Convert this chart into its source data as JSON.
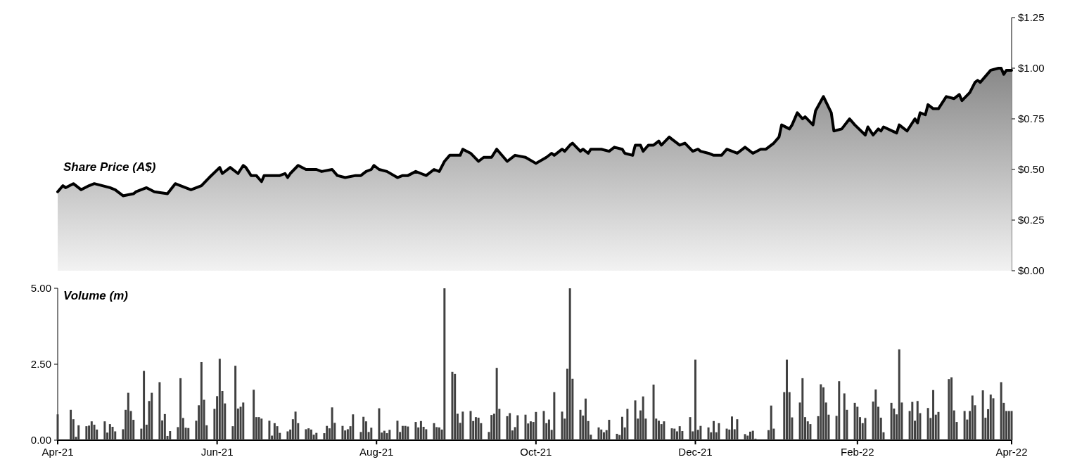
{
  "chart_data": [
    {
      "type": "area",
      "ylabel": "Share Price (A$)",
      "color": "#000000",
      "tick_labels": "y",
      "xlim": [
        "2021-04-01",
        "2022-04-01"
      ],
      "ylim": [
        0,
        1.25
      ],
      "yticks": [
        {
          "value": 0,
          "label": "$0.00"
        },
        {
          "value": 0.25,
          "label": "$0.25"
        },
        {
          "value": 0.5,
          "label": "$0.50"
        },
        {
          "value": 0.75,
          "label": "$0.75"
        },
        {
          "value": 1,
          "label": "$1.00"
        },
        {
          "value": 1.25,
          "label": "$1.25"
        }
      ],
      "x": [
        "2021-04-01",
        "2021-04-03",
        "2021-04-04",
        "2021-04-07",
        "2021-04-10",
        "2021-04-13",
        "2021-04-15",
        "2021-04-21",
        "2021-04-23",
        "2021-04-26",
        "2021-04-30",
        "2021-05-01",
        "2021-05-05",
        "2021-05-08",
        "2021-05-13",
        "2021-05-16",
        "2021-05-18",
        "2021-05-22",
        "2021-05-26",
        "2021-05-29",
        "2021-06-02",
        "2021-06-03",
        "2021-06-06",
        "2021-06-09",
        "2021-06-11",
        "2021-06-12",
        "2021-06-14",
        "2021-06-16",
        "2021-06-18",
        "2021-06-19",
        "2021-06-25",
        "2021-06-27",
        "2021-06-28",
        "2021-06-29",
        "2021-07-02",
        "2021-07-05",
        "2021-07-09",
        "2021-07-11",
        "2021-07-15",
        "2021-07-17",
        "2021-07-20",
        "2021-07-24",
        "2021-07-26",
        "2021-07-28",
        "2021-07-30",
        "2021-07-31",
        "2021-08-02",
        "2021-08-05",
        "2021-08-09",
        "2021-08-11",
        "2021-08-13",
        "2021-08-16",
        "2021-08-18",
        "2021-08-20",
        "2021-08-23",
        "2021-08-25",
        "2021-08-27",
        "2021-08-29",
        "2021-09-02",
        "2021-09-03",
        "2021-09-06",
        "2021-09-09",
        "2021-09-11",
        "2021-09-14",
        "2021-09-16",
        "2021-09-20",
        "2021-09-23",
        "2021-09-27",
        "2021-10-01",
        "2021-10-05",
        "2021-10-07",
        "2021-10-08",
        "2021-10-11",
        "2021-10-12",
        "2021-10-14",
        "2021-10-15",
        "2021-10-18",
        "2021-10-19",
        "2021-10-21",
        "2021-10-22",
        "2021-10-26",
        "2021-10-29",
        "2021-10-31",
        "2021-11-03",
        "2021-11-04",
        "2021-11-07",
        "2021-11-08",
        "2021-11-10",
        "2021-11-11",
        "2021-11-13",
        "2021-11-15",
        "2021-11-17",
        "2021-11-18",
        "2021-11-21",
        "2021-11-22",
        "2021-11-25",
        "2021-11-27",
        "2021-11-30",
        "2021-12-02",
        "2021-12-03",
        "2021-12-06",
        "2021-12-08",
        "2021-12-11",
        "2021-12-13",
        "2021-12-17",
        "2021-12-20",
        "2021-12-23",
        "2021-12-26",
        "2021-12-28",
        "2021-12-31",
        "2022-01-02",
        "2022-01-03",
        "2022-01-06",
        "2022-01-07",
        "2022-01-09",
        "2022-01-11",
        "2022-01-12",
        "2022-01-15",
        "2022-01-16",
        "2022-01-19",
        "2022-01-22",
        "2022-01-23",
        "2022-01-26",
        "2022-01-29",
        "2022-01-31",
        "2022-02-04",
        "2022-02-05",
        "2022-02-07",
        "2022-02-09",
        "2022-02-10",
        "2022-02-11",
        "2022-02-16",
        "2022-02-17",
        "2022-02-20",
        "2022-02-23",
        "2022-02-24",
        "2022-02-25",
        "2022-02-27",
        "2022-02-28",
        "2022-03-02",
        "2022-03-04",
        "2022-03-07",
        "2022-03-10",
        "2022-03-12",
        "2022-03-13",
        "2022-03-16",
        "2022-03-18",
        "2022-03-19",
        "2022-03-20",
        "2022-03-24",
        "2022-03-27",
        "2022-03-28",
        "2022-03-29",
        "2022-03-30",
        "2022-04-01"
      ],
      "values": [
        0.39,
        0.42,
        0.41,
        0.43,
        0.4,
        0.42,
        0.43,
        0.41,
        0.4,
        0.37,
        0.38,
        0.39,
        0.41,
        0.39,
        0.38,
        0.43,
        0.42,
        0.4,
        0.42,
        0.46,
        0.51,
        0.48,
        0.51,
        0.48,
        0.52,
        0.51,
        0.47,
        0.47,
        0.44,
        0.47,
        0.47,
        0.48,
        0.46,
        0.48,
        0.52,
        0.5,
        0.5,
        0.49,
        0.5,
        0.47,
        0.46,
        0.47,
        0.47,
        0.49,
        0.5,
        0.52,
        0.5,
        0.49,
        0.46,
        0.47,
        0.47,
        0.49,
        0.48,
        0.47,
        0.5,
        0.49,
        0.54,
        0.57,
        0.57,
        0.6,
        0.58,
        0.54,
        0.56,
        0.56,
        0.6,
        0.54,
        0.57,
        0.56,
        0.53,
        0.56,
        0.58,
        0.57,
        0.6,
        0.59,
        0.62,
        0.63,
        0.59,
        0.6,
        0.58,
        0.6,
        0.6,
        0.59,
        0.61,
        0.6,
        0.58,
        0.57,
        0.62,
        0.62,
        0.59,
        0.62,
        0.62,
        0.64,
        0.62,
        0.66,
        0.65,
        0.62,
        0.63,
        0.59,
        0.6,
        0.59,
        0.58,
        0.57,
        0.57,
        0.6,
        0.58,
        0.61,
        0.58,
        0.6,
        0.6,
        0.63,
        0.66,
        0.72,
        0.7,
        0.72,
        0.78,
        0.75,
        0.76,
        0.72,
        0.79,
        0.86,
        0.78,
        0.69,
        0.7,
        0.75,
        0.72,
        0.67,
        0.71,
        0.67,
        0.7,
        0.69,
        0.71,
        0.68,
        0.72,
        0.69,
        0.75,
        0.73,
        0.78,
        0.77,
        0.82,
        0.8,
        0.8,
        0.86,
        0.85,
        0.87,
        0.84,
        0.88,
        0.93,
        0.94,
        0.93,
        0.99,
        1.0,
        1.0,
        0.97,
        0.99,
        0.99
      ]
    },
    {
      "type": "bar",
      "ylabel": "Volume (m)",
      "color": "#404040",
      "xlim": [
        "2021-04-01",
        "2022-04-01"
      ],
      "ylim": [
        0,
        5
      ],
      "yticks": [
        {
          "value": 0,
          "label": "0.00"
        },
        {
          "value": 2.5,
          "label": "2.50"
        },
        {
          "value": 5,
          "label": "5.00"
        }
      ],
      "xticks": [
        {
          "value": "2021-04-01",
          "label": "Apr-21"
        },
        {
          "value": "2021-06-01",
          "label": "Jun-21"
        },
        {
          "value": "2021-08-01",
          "label": "Aug-21"
        },
        {
          "value": "2021-10-01",
          "label": "Oct-21"
        },
        {
          "value": "2021-12-01",
          "label": "Dec-21"
        },
        {
          "value": "2022-02-01",
          "label": "Feb-22"
        },
        {
          "value": "2022-04-01",
          "label": "Apr-22"
        }
      ],
      "x": [
        "2021-04-01",
        "2021-04-06",
        "2021-04-07",
        "2021-04-08",
        "2021-04-09",
        "2021-04-12",
        "2021-04-13",
        "2021-04-14",
        "2021-04-15",
        "2021-04-16",
        "2021-04-19",
        "2021-04-20",
        "2021-04-21",
        "2021-04-22",
        "2021-04-23",
        "2021-04-26",
        "2021-04-27",
        "2021-04-28",
        "2021-04-29",
        "2021-04-30",
        "2021-05-03",
        "2021-05-04",
        "2021-05-05",
        "2021-05-06",
        "2021-05-07",
        "2021-05-10",
        "2021-05-11",
        "2021-05-12",
        "2021-05-13",
        "2021-05-14",
        "2021-05-17",
        "2021-05-18",
        "2021-05-19",
        "2021-05-20",
        "2021-05-21",
        "2021-05-24",
        "2021-05-25",
        "2021-05-26",
        "2021-05-27",
        "2021-05-28",
        "2021-05-31",
        "2021-06-01",
        "2021-06-02",
        "2021-06-03",
        "2021-06-04",
        "2021-06-07",
        "2021-06-08",
        "2021-06-09",
        "2021-06-10",
        "2021-06-11",
        "2021-06-15",
        "2021-06-16",
        "2021-06-17",
        "2021-06-18",
        "2021-06-21",
        "2021-06-22",
        "2021-06-23",
        "2021-06-24",
        "2021-06-25",
        "2021-06-28",
        "2021-06-29",
        "2021-06-30",
        "2021-07-01",
        "2021-07-02",
        "2021-07-05",
        "2021-07-06",
        "2021-07-07",
        "2021-07-08",
        "2021-07-09",
        "2021-07-12",
        "2021-07-13",
        "2021-07-14",
        "2021-07-15",
        "2021-07-16",
        "2021-07-19",
        "2021-07-20",
        "2021-07-21",
        "2021-07-22",
        "2021-07-23",
        "2021-07-26",
        "2021-07-27",
        "2021-07-28",
        "2021-07-29",
        "2021-07-30",
        "2021-08-02",
        "2021-08-03",
        "2021-08-04",
        "2021-08-05",
        "2021-08-06",
        "2021-08-09",
        "2021-08-10",
        "2021-08-11",
        "2021-08-12",
        "2021-08-13",
        "2021-08-16",
        "2021-08-17",
        "2021-08-18",
        "2021-08-19",
        "2021-08-20",
        "2021-08-23",
        "2021-08-24",
        "2021-08-25",
        "2021-08-26",
        "2021-08-27",
        "2021-08-30",
        "2021-08-31",
        "2021-09-01",
        "2021-09-02",
        "2021-09-03",
        "2021-09-06",
        "2021-09-07",
        "2021-09-08",
        "2021-09-09",
        "2021-09-10",
        "2021-09-13",
        "2021-09-14",
        "2021-09-15",
        "2021-09-16",
        "2021-09-17",
        "2021-09-20",
        "2021-09-21",
        "2021-09-22",
        "2021-09-23",
        "2021-09-24",
        "2021-09-27",
        "2021-09-28",
        "2021-09-29",
        "2021-09-30",
        "2021-10-01",
        "2021-10-04",
        "2021-10-05",
        "2021-10-06",
        "2021-10-07",
        "2021-10-08",
        "2021-10-11",
        "2021-10-12",
        "2021-10-13",
        "2021-10-14",
        "2021-10-15",
        "2021-10-18",
        "2021-10-19",
        "2021-10-20",
        "2021-10-21",
        "2021-10-22",
        "2021-10-25",
        "2021-10-26",
        "2021-10-27",
        "2021-10-28",
        "2021-10-29",
        "2021-11-01",
        "2021-11-02",
        "2021-11-03",
        "2021-11-04",
        "2021-11-05",
        "2021-11-08",
        "2021-11-09",
        "2021-11-10",
        "2021-11-11",
        "2021-11-12",
        "2021-11-15",
        "2021-11-16",
        "2021-11-17",
        "2021-11-18",
        "2021-11-19",
        "2021-11-22",
        "2021-11-23",
        "2021-11-24",
        "2021-11-25",
        "2021-11-26",
        "2021-11-29",
        "2021-11-30",
        "2021-12-01",
        "2021-12-02",
        "2021-12-03",
        "2021-12-06",
        "2021-12-07",
        "2021-12-08",
        "2021-12-09",
        "2021-12-10",
        "2021-12-13",
        "2021-12-14",
        "2021-12-15",
        "2021-12-16",
        "2021-12-17",
        "2021-12-20",
        "2021-12-21",
        "2021-12-22",
        "2021-12-23",
        "2021-12-24",
        "2021-12-29",
        "2021-12-30",
        "2021-12-31",
        "2022-01-04",
        "2022-01-05",
        "2022-01-06",
        "2022-01-07",
        "2022-01-10",
        "2022-01-11",
        "2022-01-12",
        "2022-01-13",
        "2022-01-14",
        "2022-01-17",
        "2022-01-18",
        "2022-01-19",
        "2022-01-20",
        "2022-01-21",
        "2022-01-24",
        "2022-01-25",
        "2022-01-27",
        "2022-01-28",
        "2022-01-31",
        "2022-02-01",
        "2022-02-02",
        "2022-02-03",
        "2022-02-04",
        "2022-02-07",
        "2022-02-08",
        "2022-02-09",
        "2022-02-10",
        "2022-02-11",
        "2022-02-14",
        "2022-02-15",
        "2022-02-16",
        "2022-02-17",
        "2022-02-18",
        "2022-02-21",
        "2022-02-22",
        "2022-02-23",
        "2022-02-24",
        "2022-02-25",
        "2022-02-28",
        "2022-03-01",
        "2022-03-02",
        "2022-03-03",
        "2022-03-04",
        "2022-03-08",
        "2022-03-09",
        "2022-03-10",
        "2022-03-11",
        "2022-03-14",
        "2022-03-15",
        "2022-03-16",
        "2022-03-17",
        "2022-03-18",
        "2022-03-21",
        "2022-03-22",
        "2022-03-23",
        "2022-03-24",
        "2022-03-25",
        "2022-03-28",
        "2022-03-29",
        "2022-03-30",
        "2022-03-31",
        "2022-04-01"
      ],
      "values": [
        0.85,
        1.0,
        0.69,
        0.11,
        0.49,
        0.46,
        0.48,
        0.62,
        0.51,
        0.35,
        0.62,
        0.25,
        0.53,
        0.44,
        0.29,
        0.36,
        1.0,
        1.56,
        0.96,
        0.67,
        0.38,
        2.28,
        0.51,
        1.29,
        1.56,
        1.91,
        0.65,
        0.86,
        0.14,
        0.3,
        0.43,
        2.04,
        0.73,
        0.41,
        0.4,
        0.64,
        1.15,
        2.57,
        1.33,
        0.49,
        1.03,
        1.45,
        2.68,
        1.62,
        1.21,
        0.46,
        2.45,
        1.04,
        1.1,
        1.24,
        1.66,
        0.76,
        0.76,
        0.71,
        0.64,
        0.15,
        0.56,
        0.46,
        0.24,
        0.29,
        0.35,
        0.69,
        0.94,
        0.56,
        0.36,
        0.39,
        0.35,
        0.18,
        0.24,
        0.23,
        0.47,
        0.39,
        1.08,
        0.57,
        0.47,
        0.32,
        0.36,
        0.46,
        0.85,
        0.27,
        0.77,
        0.62,
        0.27,
        0.41,
        1.05,
        0.25,
        0.31,
        0.23,
        0.34,
        0.64,
        0.27,
        0.47,
        0.47,
        0.45,
        0.6,
        0.42,
        0.63,
        0.44,
        0.36,
        0.56,
        0.43,
        0.42,
        0.35,
        5.0,
        2.25,
        2.18,
        0.87,
        0.57,
        0.94,
        0.96,
        0.63,
        0.76,
        0.74,
        0.56,
        0.27,
        0.83,
        0.87,
        2.38,
        1.03,
        0.79,
        0.89,
        0.32,
        0.43,
        0.82,
        0.84,
        0.55,
        0.62,
        0.6,
        0.93,
        0.96,
        0.56,
        0.68,
        0.34,
        1.58,
        0.94,
        0.71,
        2.35,
        5.0,
        2.02,
        1.0,
        0.81,
        1.37,
        0.63,
        0.18,
        0.42,
        0.35,
        0.26,
        0.33,
        0.67,
        0.21,
        0.17,
        0.77,
        0.42,
        1.03,
        1.31,
        0.71,
        0.98,
        1.44,
        0.71,
        1.83,
        0.71,
        0.64,
        0.53,
        0.62,
        0.39,
        0.38,
        0.29,
        0.46,
        0.3,
        0.76,
        0.29,
        2.65,
        0.34,
        0.47,
        0.42,
        0.26,
        0.63,
        0.26,
        0.56,
        0.38,
        0.35,
        0.78,
        0.36,
        0.69,
        0.2,
        0.15,
        0.28,
        0.31,
        0.05,
        0.33,
        1.14,
        0.38,
        1.58,
        2.65,
        1.58,
        0.75,
        1.24,
        2.04,
        0.76,
        0.62,
        0.53,
        0.79,
        1.84,
        1.74,
        1.24,
        0.84,
        0.8,
        1.94,
        1.54,
        1.0,
        1.23,
        1.1,
        0.76,
        0.56,
        0.73,
        1.27,
        1.67,
        1.1,
        0.74,
        0.26,
        1.23,
        1.04,
        0.85,
        2.99,
        1.24,
        0.96,
        1.26,
        0.64,
        1.29,
        0.89,
        1.06,
        0.73,
        1.65,
        0.84,
        0.93,
        2.01,
        2.07,
        0.98,
        0.6,
        0.96,
        0.68,
        0.96,
        1.47,
        1.15,
        1.64,
        0.74,
        1.02,
        1.5,
        1.38,
        1.91,
        1.23,
        0.96,
        0.96,
        0.96
      ]
    }
  ]
}
